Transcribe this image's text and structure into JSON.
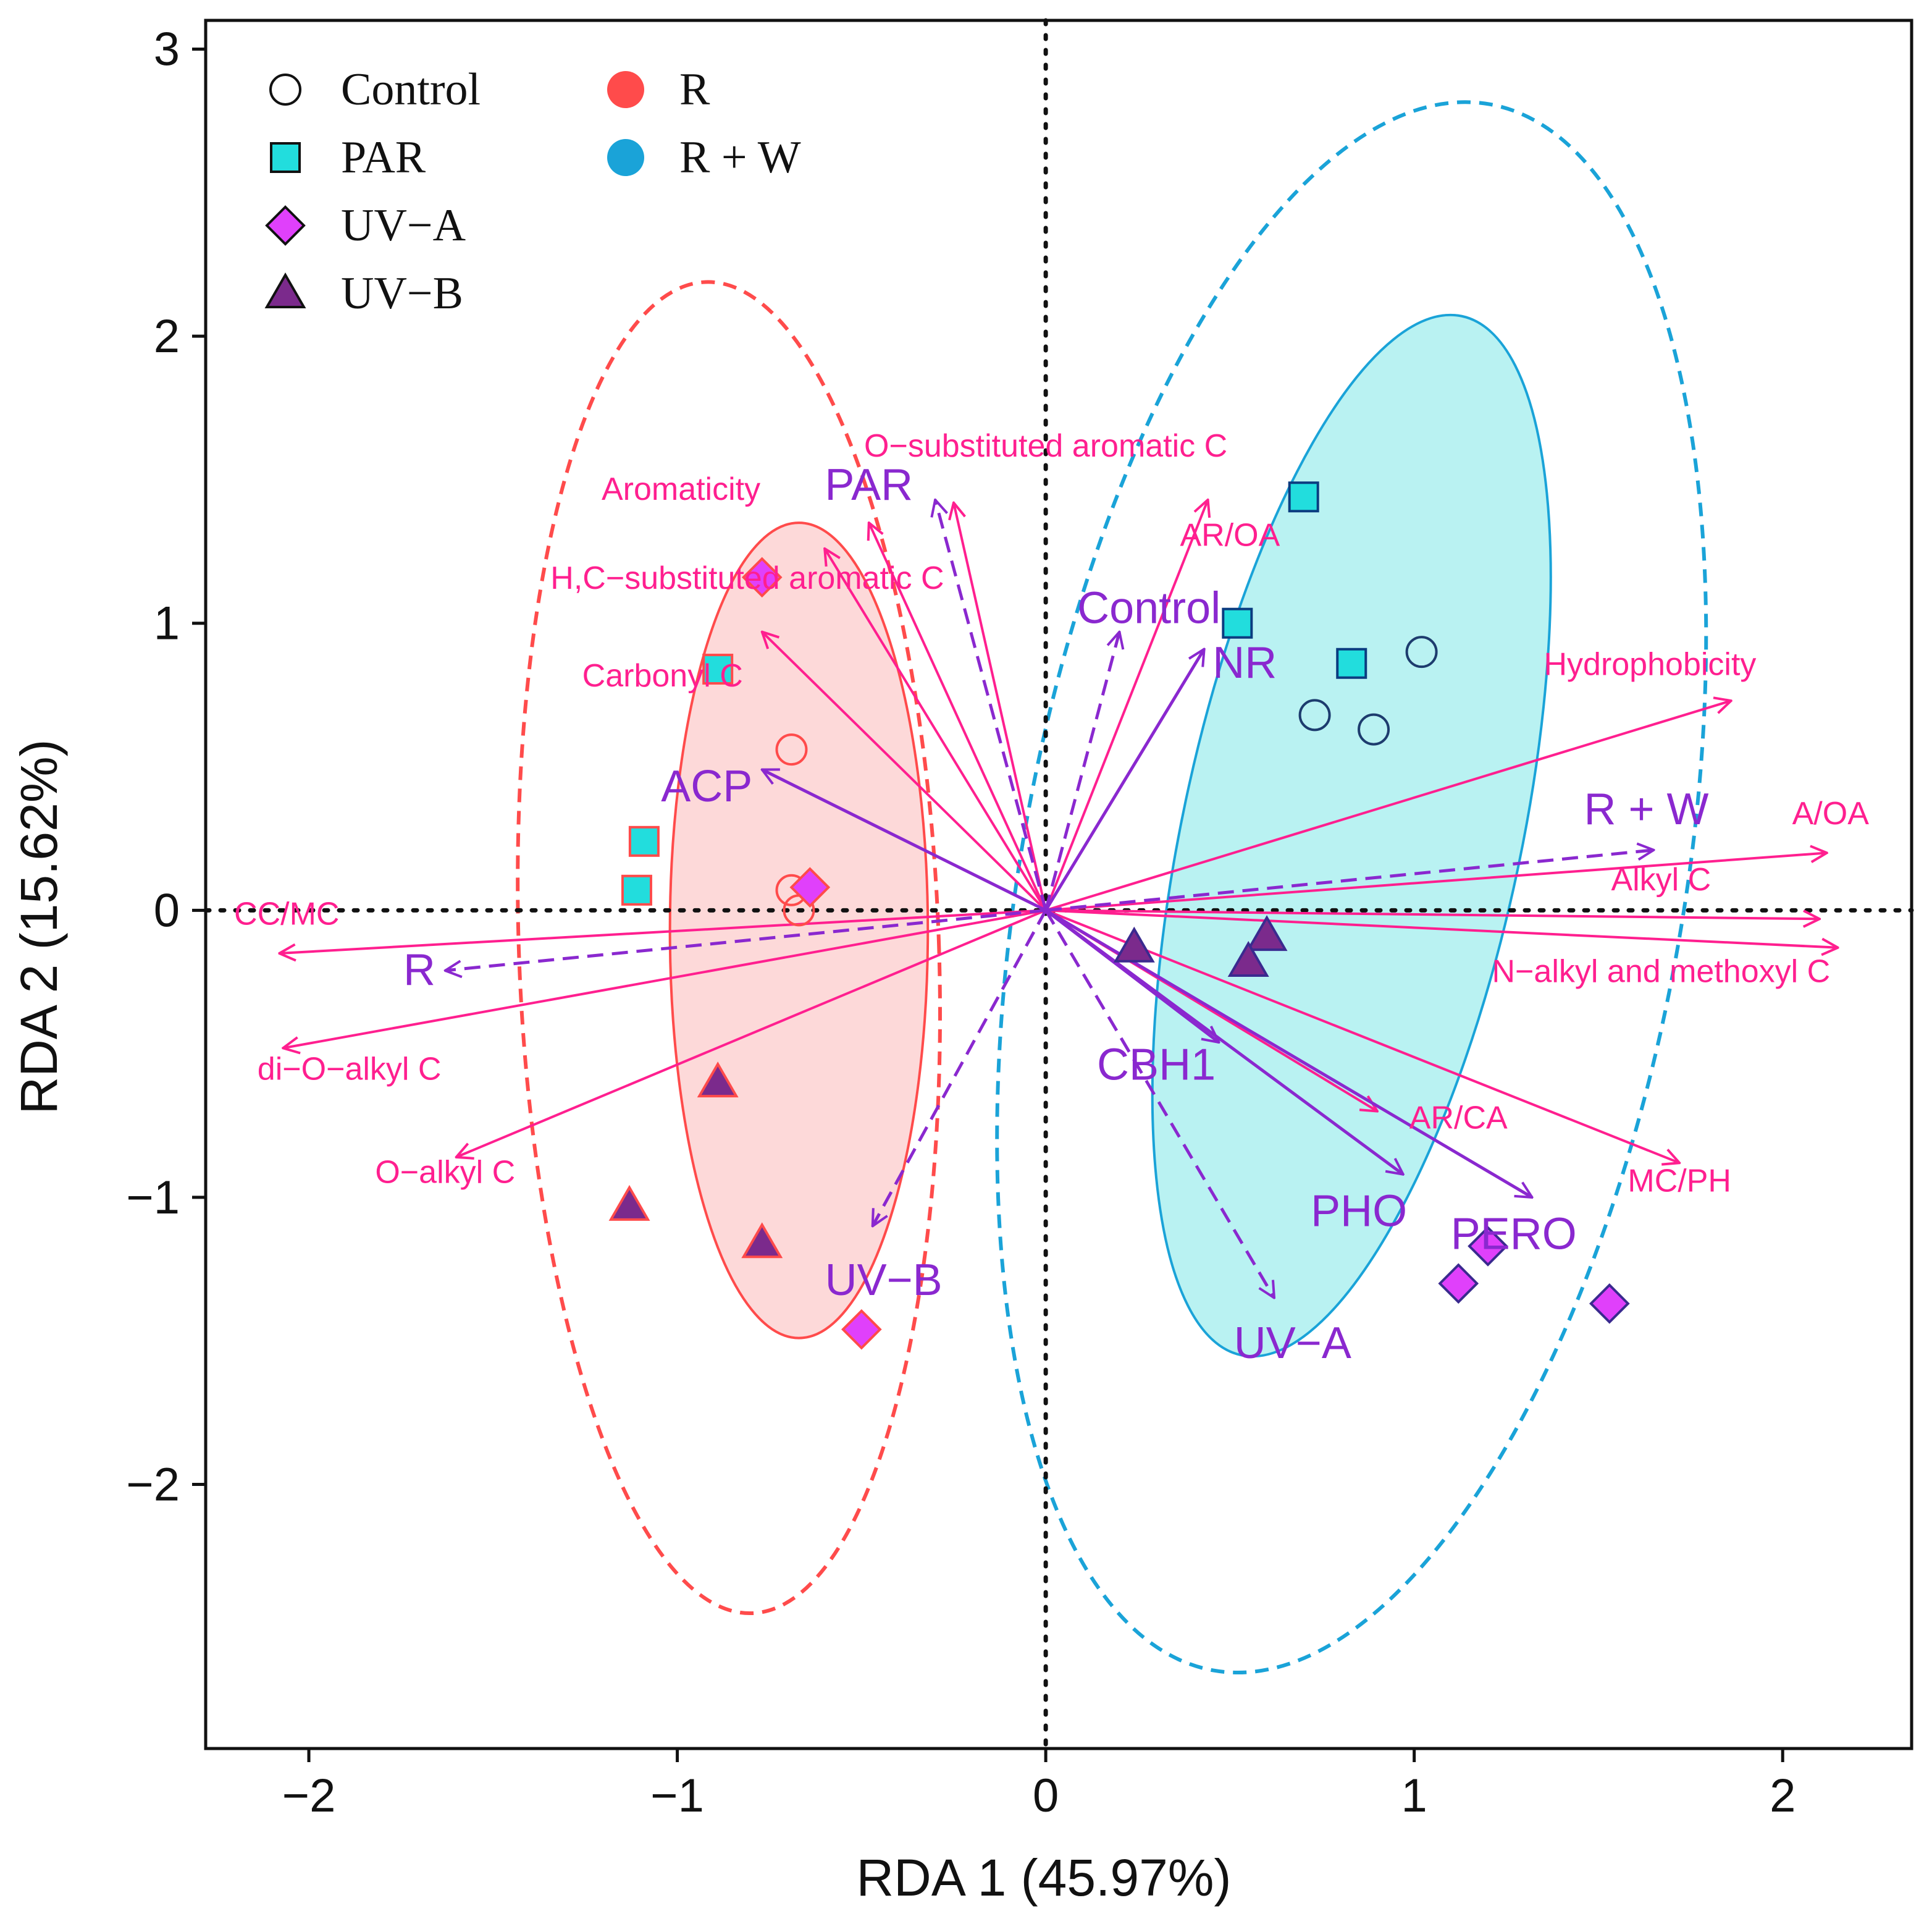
{
  "chart_data": {
    "type": "scatter",
    "title": "",
    "xlabel": "RDA 1 (45.97%)",
    "ylabel": "RDA 2 (15.62%)",
    "xlim": [
      -2.28,
      2.35
    ],
    "ylim": [
      -2.92,
      3.1
    ],
    "xticks": [
      -2,
      -1,
      0,
      1,
      2
    ],
    "yticks": [
      -2,
      -1,
      0,
      1,
      2,
      3
    ],
    "xtick_labels": [
      "−2",
      "−1",
      "0",
      "1",
      "2"
    ],
    "ytick_labels": [
      "−2",
      "−1",
      "0",
      "1",
      "2",
      "3"
    ],
    "reference_lines": [
      {
        "axis": "x",
        "value": 0,
        "style": "dotted"
      },
      {
        "axis": "y",
        "value": 0,
        "style": "dotted"
      }
    ],
    "colors": {
      "R": "#ff4b4b",
      "R_fill": "#fdd9d9",
      "RW": "#1aa3d8",
      "RW_fill": "#b9f2f2",
      "PAR_fill": "#22dddd",
      "UVA_fill": "#e040fb",
      "UVB_fill": "#7b2a8c",
      "env_arrow": "#ff1f8f",
      "factor_arrow": "#8a28cf"
    },
    "legend": {
      "position": "top-left",
      "shape_entries": [
        {
          "label": "Control",
          "shape": "circle"
        },
        {
          "label": "PAR",
          "shape": "square"
        },
        {
          "label": "UV−A",
          "shape": "diamond"
        },
        {
          "label": "UV−B",
          "shape": "triangle"
        }
      ],
      "group_entries": [
        {
          "label": "R",
          "color": "#ff4b4b"
        },
        {
          "label": "R + W",
          "color": "#1aa3d8"
        }
      ]
    },
    "ellipses": [
      {
        "group": "R",
        "style": "dashed",
        "filled": false,
        "center": [
          -0.86,
          -0.13
        ],
        "rx": 0.57,
        "ry": 2.32,
        "angle_deg": -2
      },
      {
        "group": "R",
        "style": "solid",
        "filled": true,
        "center": [
          -0.67,
          -0.07
        ],
        "rx": 0.35,
        "ry": 1.42,
        "angle_deg": 0
      },
      {
        "group": "R + W",
        "style": "dashed",
        "filled": false,
        "center": [
          0.83,
          0.08
        ],
        "rx": 0.9,
        "ry": 2.77,
        "angle_deg": 10
      },
      {
        "group": "R + W",
        "style": "solid",
        "filled": true,
        "center": [
          0.83,
          0.26
        ],
        "rx": 0.46,
        "ry": 1.85,
        "angle_deg": 12
      }
    ],
    "points": [
      {
        "group": "R",
        "treatment": "Control",
        "x": -0.69,
        "y": 0.56
      },
      {
        "group": "R",
        "treatment": "Control",
        "x": -0.69,
        "y": 0.07
      },
      {
        "group": "R",
        "treatment": "Control",
        "x": -0.67,
        "y": 0.0
      },
      {
        "group": "R",
        "treatment": "PAR",
        "x": -0.89,
        "y": 0.84
      },
      {
        "group": "R",
        "treatment": "PAR",
        "x": -1.09,
        "y": 0.24
      },
      {
        "group": "R",
        "treatment": "PAR",
        "x": -1.11,
        "y": 0.07
      },
      {
        "group": "R",
        "treatment": "UV−A",
        "x": -0.77,
        "y": 1.16
      },
      {
        "group": "R",
        "treatment": "UV−A",
        "x": -0.64,
        "y": 0.08
      },
      {
        "group": "R",
        "treatment": "UV−A",
        "x": -0.5,
        "y": -1.46
      },
      {
        "group": "R",
        "treatment": "UV−B",
        "x": -0.89,
        "y": -0.6
      },
      {
        "group": "R",
        "treatment": "UV−B",
        "x": -1.13,
        "y": -1.03
      },
      {
        "group": "R",
        "treatment": "UV−B",
        "x": -0.77,
        "y": -1.16
      },
      {
        "group": "R + W",
        "treatment": "Control",
        "x": 1.02,
        "y": 0.9
      },
      {
        "group": "R + W",
        "treatment": "Control",
        "x": 0.73,
        "y": 0.68
      },
      {
        "group": "R + W",
        "treatment": "Control",
        "x": 0.89,
        "y": 0.63
      },
      {
        "group": "R + W",
        "treatment": "PAR",
        "x": 0.7,
        "y": 1.44
      },
      {
        "group": "R + W",
        "treatment": "PAR",
        "x": 0.52,
        "y": 1.0
      },
      {
        "group": "R + W",
        "treatment": "PAR",
        "x": 0.83,
        "y": 0.86
      },
      {
        "group": "R + W",
        "treatment": "UV−A",
        "x": 1.2,
        "y": -1.17
      },
      {
        "group": "R + W",
        "treatment": "UV−A",
        "x": 1.12,
        "y": -1.3
      },
      {
        "group": "R + W",
        "treatment": "UV−A",
        "x": 1.53,
        "y": -1.37
      },
      {
        "group": "R + W",
        "treatment": "UV−B",
        "x": 0.24,
        "y": -0.13
      },
      {
        "group": "R + W",
        "treatment": "UV−B",
        "x": 0.6,
        "y": -0.09
      },
      {
        "group": "R + W",
        "treatment": "UV−B",
        "x": 0.55,
        "y": -0.18
      }
    ],
    "env_arrows": [
      {
        "label": "O−substituted aromatic C",
        "x": -0.25,
        "y": 1.42,
        "label_x": 0.0,
        "label_y": 1.58
      },
      {
        "label": "Aromaticity",
        "x": -0.48,
        "y": 1.35,
        "label_x": -0.99,
        "label_y": 1.43
      },
      {
        "label": "H,C−substituted aromatic C",
        "x": -0.6,
        "y": 1.26,
        "label_x": -0.81,
        "label_y": 1.12
      },
      {
        "label": "AR/OA",
        "x": 0.44,
        "y": 1.43,
        "label_x": 0.5,
        "label_y": 1.27
      },
      {
        "label": "Carbonyl C",
        "x": -0.77,
        "y": 0.97,
        "label_x": -1.04,
        "label_y": 0.78
      },
      {
        "label": "Hydrophobicity",
        "x": 1.86,
        "y": 0.73,
        "label_x": 1.64,
        "label_y": 0.82
      },
      {
        "label": "A/OA",
        "x": 2.12,
        "y": 0.2,
        "label_x": 2.13,
        "label_y": 0.3
      },
      {
        "label": "Alkyl C",
        "x": 2.1,
        "y": -0.03,
        "label_x": 1.67,
        "label_y": 0.07
      },
      {
        "label": "N−alkyl and methoxyl C",
        "x": 2.15,
        "y": -0.13,
        "label_x": 1.67,
        "label_y": -0.25
      },
      {
        "label": "CC/MC",
        "x": -2.08,
        "y": -0.15,
        "label_x": -2.06,
        "label_y": -0.05
      },
      {
        "label": "di−O−alkyl C",
        "x": -2.07,
        "y": -0.48,
        "label_x": -1.89,
        "label_y": -0.59
      },
      {
        "label": "O−alkyl C",
        "x": -1.6,
        "y": -0.86,
        "label_x": -1.63,
        "label_y": -0.95
      },
      {
        "label": "AR/CA",
        "x": 0.9,
        "y": -0.7,
        "label_x": 1.12,
        "label_y": -0.76
      },
      {
        "label": "MC/PH",
        "x": 1.72,
        "y": -0.88,
        "label_x": 1.72,
        "label_y": -0.98
      }
    ],
    "factor_arrows": [
      {
        "label": "PAR",
        "x": -0.3,
        "y": 1.43,
        "label_x": -0.48,
        "label_y": 1.43,
        "style": "dashed",
        "size": "large"
      },
      {
        "label": "Control",
        "x": 0.2,
        "y": 0.97,
        "label_x": 0.28,
        "label_y": 1.0,
        "style": "dashed",
        "size": "large"
      },
      {
        "label": "NR",
        "x": 0.43,
        "y": 0.91,
        "label_x": 0.54,
        "label_y": 0.81,
        "style": "solid",
        "size": "large"
      },
      {
        "label": "R + W",
        "x": 1.65,
        "y": 0.21,
        "label_x": 1.63,
        "label_y": 0.3,
        "style": "dashed",
        "size": "large"
      },
      {
        "label": "ACP",
        "x": -0.77,
        "y": 0.49,
        "label_x": -0.92,
        "label_y": 0.38,
        "style": "solid",
        "size": "large"
      },
      {
        "label": "R",
        "x": -1.63,
        "y": -0.21,
        "label_x": -1.7,
        "label_y": -0.26,
        "style": "dashed",
        "size": "large"
      },
      {
        "label": "UV−B",
        "x": -0.47,
        "y": -1.1,
        "label_x": -0.44,
        "label_y": -1.34,
        "style": "dashed",
        "size": "large"
      },
      {
        "label": "CBH1",
        "x": 0.47,
        "y": -0.46,
        "label_x": 0.3,
        "label_y": -0.59,
        "style": "solid",
        "size": "large"
      },
      {
        "label": "PHO",
        "x": 0.97,
        "y": -0.92,
        "label_x": 0.85,
        "label_y": -1.1,
        "style": "solid",
        "size": "large"
      },
      {
        "label": "PERO",
        "x": 1.32,
        "y": -1.0,
        "label_x": 1.27,
        "label_y": -1.18,
        "style": "solid",
        "size": "large"
      },
      {
        "label": "UV−A",
        "x": 0.62,
        "y": -1.35,
        "label_x": 0.67,
        "label_y": -1.56,
        "style": "dashed",
        "size": "large"
      }
    ]
  }
}
